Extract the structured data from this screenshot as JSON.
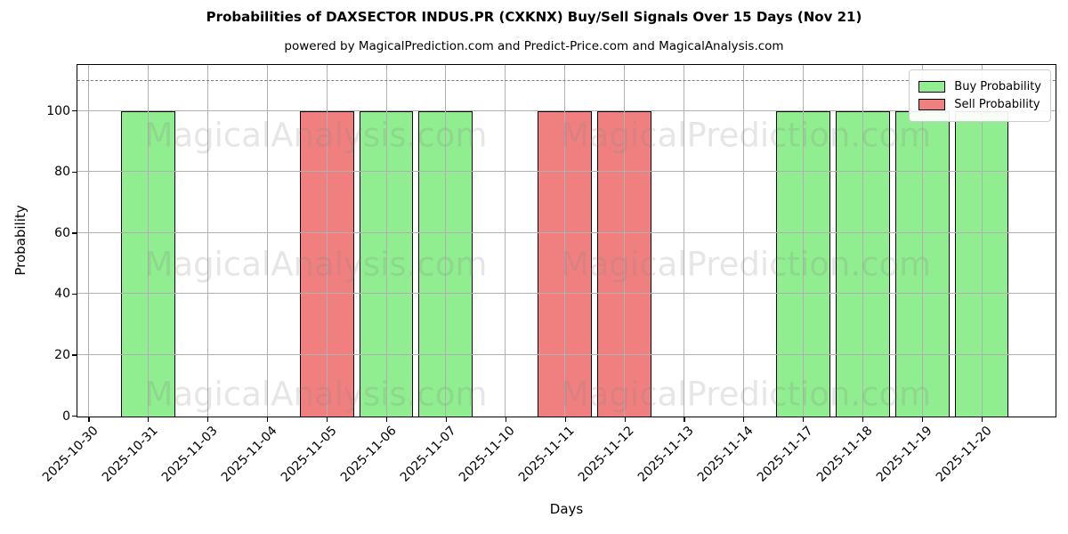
{
  "watermarks": {
    "left_text": "MagicalAnalysis.com",
    "right_text": "MagicalPrediction.com"
  },
  "chart_data": {
    "type": "bar",
    "title": "Probabilities of DAXSECTOR INDUS.PR (CXKNX) Buy/Sell Signals Over 15 Days (Nov 21)",
    "subtitle": "powered by MagicalPrediction.com and Predict-Price.com and MagicalAnalysis.com",
    "xlabel": "Days",
    "ylabel": "Probability",
    "ylim": [
      0,
      115
    ],
    "yticks": [
      0,
      20,
      40,
      60,
      80,
      100
    ],
    "grid": true,
    "grid_color": "#b0b0b0",
    "dashed_guide_line": {
      "y": 110,
      "color": "#7f7f7f",
      "style": "dashed"
    },
    "legend": {
      "position": "top-right",
      "entries": [
        "Buy Probability",
        "Sell Probability"
      ]
    },
    "categories": [
      "2025-10-30",
      "2025-10-31",
      "2025-11-03",
      "2025-11-04",
      "2025-11-05",
      "2025-11-06",
      "2025-11-07",
      "2025-11-10",
      "2025-11-11",
      "2025-11-12",
      "2025-11-13",
      "2025-11-14",
      "2025-11-17",
      "2025-11-18",
      "2025-11-19",
      "2025-11-20"
    ],
    "series": [
      {
        "name": "Buy Probability",
        "color": "#90EE90",
        "edge_color": "#000000",
        "values": [
          0,
          100,
          0,
          0,
          0,
          100,
          100,
          0,
          0,
          0,
          0,
          0,
          100,
          100,
          100,
          100
        ]
      },
      {
        "name": "Sell Probability",
        "color": "#F08080",
        "edge_color": "#000000",
        "values": [
          0,
          0,
          0,
          0,
          100,
          0,
          0,
          0,
          100,
          100,
          0,
          0,
          0,
          0,
          0,
          0
        ]
      }
    ],
    "bar_width_ratio": 0.91
  }
}
